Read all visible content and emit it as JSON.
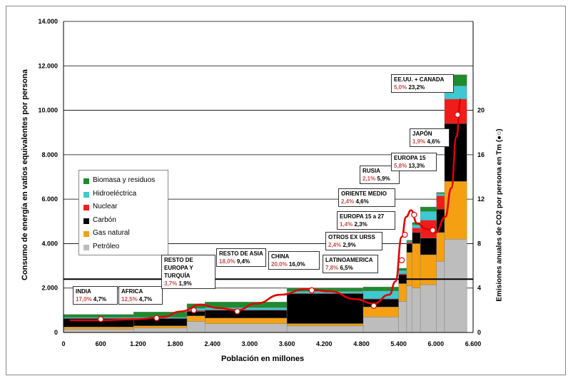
{
  "chart_data": {
    "type": "bar",
    "subtype": "variable-width stacked bar with secondary line",
    "xlabel": "Población en millones",
    "ylabel": "Consumo de energía en vatios equivalentes por persona",
    "y2label": "Emisiones anuales de CO2 por persona en Tm (●○)",
    "x_ticks": [
      "0",
      "600",
      "1.200",
      "1.800",
      "2.400",
      "3.000",
      "3.600",
      "4.200",
      "4.800",
      "5.400",
      "6.000",
      "6.600"
    ],
    "y_ticks": [
      "0",
      "2.000",
      "4.000",
      "6.000",
      "8.000",
      "10.000",
      "12.000",
      "14.000"
    ],
    "y2_ticks": [
      "0",
      "4",
      "8",
      "12",
      "16",
      "20"
    ],
    "xlim": [
      0,
      6600
    ],
    "ylim": [
      0,
      14000
    ],
    "y2lim": [
      0,
      28
    ],
    "grid": "horizontal major",
    "legend_position": "left",
    "reference_line_y": 2400,
    "series_names": [
      "Biomasa y residuos",
      "Hidroeléctrica",
      "Nuclear",
      "Carbón",
      "Gas natural",
      "Petróleo"
    ],
    "series_colors": [
      "#1e8b2d",
      "#3fc8cf",
      "#ef1c1c",
      "#000000",
      "#f5a012",
      "#bdbdbd"
    ],
    "stack_order": [
      "Petróleo",
      "Gas natural",
      "Carbón",
      "Nuclear",
      "Hidroeléctrica",
      "Biomasa y residuos"
    ],
    "bars": [
      {
        "x0": 0,
        "x1": 1130,
        "Petróleo": 150,
        "Gas natural": 100,
        "Carbón": 380,
        "Nuclear": 10,
        "Hidroeléctrica": 40,
        "Biomasa y residuos": 130
      },
      {
        "x0": 1130,
        "x1": 1990,
        "Petróleo": 200,
        "Gas natural": 100,
        "Carbón": 330,
        "Nuclear": 10,
        "Hidroeléctrica": 50,
        "Biomasa y residuos": 230
      },
      {
        "x0": 1990,
        "x1": 2280,
        "Petróleo": 500,
        "Gas natural": 250,
        "Carbón": 200,
        "Nuclear": 40,
        "Hidroeléctrica": 100,
        "Biomasa y residuos": 200
      },
      {
        "x0": 2280,
        "x1": 3600,
        "Petróleo": 400,
        "Gas natural": 250,
        "Carbón": 350,
        "Nuclear": 20,
        "Hidroeléctrica": 100,
        "Biomasa y residuos": 250
      },
      {
        "x0": 3600,
        "x1": 4830,
        "Petróleo": 300,
        "Gas natural": 100,
        "Carbón": 1350,
        "Nuclear": 20,
        "Hidroeléctrica": 80,
        "Biomasa y residuos": 150
      },
      {
        "x0": 4830,
        "x1": 5400,
        "Petróleo": 700,
        "Gas natural": 450,
        "Carbón": 350,
        "Nuclear": 20,
        "Hidroeléctrica": 350,
        "Biomasa y residuos": 180
      },
      {
        "x0": 5400,
        "x1": 5530,
        "Petróleo": 1400,
        "Gas natural": 800,
        "Carbón": 400,
        "Nuclear": 40,
        "Hidroeléctrica": 150,
        "Biomasa y residuos": 100
      },
      {
        "x0": 5530,
        "x1": 5620,
        "Petróleo": 2100,
        "Gas natural": 1500,
        "Carbón": 400,
        "Nuclear": 60,
        "Hidroeléctrica": 40,
        "Biomasa y residuos": 50
      },
      {
        "x0": 5620,
        "x1": 5750,
        "Petróleo": 2000,
        "Gas natural": 2000,
        "Carbón": 500,
        "Nuclear": 200,
        "Hidroeléctrica": 150,
        "Biomasa y residuos": 100
      },
      {
        "x0": 5750,
        "x1": 6010,
        "Petróleo": 2150,
        "Gas natural": 1350,
        "Carbón": 750,
        "Nuclear": 800,
        "Hidroeléctrica": 400,
        "Biomasa y residuos": 200
      },
      {
        "x0": 6010,
        "x1": 6140,
        "Petróleo": 3200,
        "Gas natural": 1300,
        "Carbón": 1050,
        "Nuclear": 600,
        "Hidroeléctrica": 100,
        "Biomasa y residuos": 50
      },
      {
        "x0": 6140,
        "x1": 6500,
        "Petróleo": 4200,
        "Gas natural": 2600,
        "Carbón": 2600,
        "Nuclear": 1100,
        "Hidroeléctrica": 600,
        "Biomasa y residuos": 500
      }
    ],
    "co2_points": [
      {
        "x": 600,
        "y": 1.2
      },
      {
        "x": 1500,
        "y": 1.3
      },
      {
        "x": 2100,
        "y": 2.0
      },
      {
        "x": 2800,
        "y": 1.9
      },
      {
        "x": 4000,
        "y": 3.8
      },
      {
        "x": 5000,
        "y": 2.4
      },
      {
        "x": 5450,
        "y": 6.5
      },
      {
        "x": 5500,
        "y": 8.8
      },
      {
        "x": 5650,
        "y": 10.6
      },
      {
        "x": 5950,
        "y": 9.2
      },
      {
        "x": 6350,
        "y": 19.6
      }
    ],
    "co2_curve": [
      [
        100,
        1.1
      ],
      [
        600,
        1.1
      ],
      [
        1200,
        1.2
      ],
      [
        1600,
        1.4
      ],
      [
        1900,
        1.9
      ],
      [
        2200,
        2.5
      ],
      [
        2500,
        2.2
      ],
      [
        2800,
        2.0
      ],
      [
        3100,
        2.6
      ],
      [
        3500,
        3.4
      ],
      [
        3900,
        3.9
      ],
      [
        4300,
        3.7
      ],
      [
        4700,
        3.0
      ],
      [
        5000,
        2.6
      ],
      [
        5250,
        3.4
      ],
      [
        5350,
        4.6
      ],
      [
        5450,
        8.6
      ],
      [
        5520,
        10.4
      ],
      [
        5600,
        11.0
      ],
      [
        5700,
        9.8
      ],
      [
        5850,
        9.3
      ],
      [
        6000,
        9.0
      ],
      [
        6150,
        10.4
      ],
      [
        6250,
        13.0
      ],
      [
        6330,
        17.6
      ],
      [
        6400,
        21.0
      ]
    ],
    "annotations": [
      {
        "region": "INDIA",
        "pop_pct": "17,0%",
        "co2_pct": "4,7%"
      },
      {
        "region": "AFRICA",
        "pop_pct": "12,5%",
        "co2_pct": "4,7%"
      },
      {
        "region": "RESTO DE EUROPA Y TURQUÍA",
        "pop_pct": "3,7%",
        "co2_pct": "1,9%"
      },
      {
        "region": "RESTO DE ASIA",
        "pop_pct": "18,0%",
        "co2_pct": "9,4%"
      },
      {
        "region": "CHINA",
        "pop_pct": "20,0%",
        "co2_pct": "16,0%"
      },
      {
        "region": "LATINOAMERICA",
        "pop_pct": "7,8%",
        "co2_pct": "6,5%"
      },
      {
        "region": "OTROS EX URSS",
        "pop_pct": "2,4%",
        "co2_pct": "2,9%"
      },
      {
        "region": "EUROPA 15 a 27",
        "pop_pct": "1,4%",
        "co2_pct": "2,3%"
      },
      {
        "region": "ORIENTE MEDIO",
        "pop_pct": "2,4%",
        "co2_pct": "4,6%"
      },
      {
        "region": "RUSIA",
        "pop_pct": "2,1%",
        "co2_pct": "5,9%"
      },
      {
        "region": "EUROPA 15",
        "pop_pct": "5,8%",
        "co2_pct": "13,3%"
      },
      {
        "region": "JAPÓN",
        "pop_pct": "1,9%",
        "co2_pct": "4,6%"
      },
      {
        "region": "EE.UU. + CANADA",
        "pop_pct": "5,0%",
        "co2_pct": "23,2%"
      }
    ]
  }
}
